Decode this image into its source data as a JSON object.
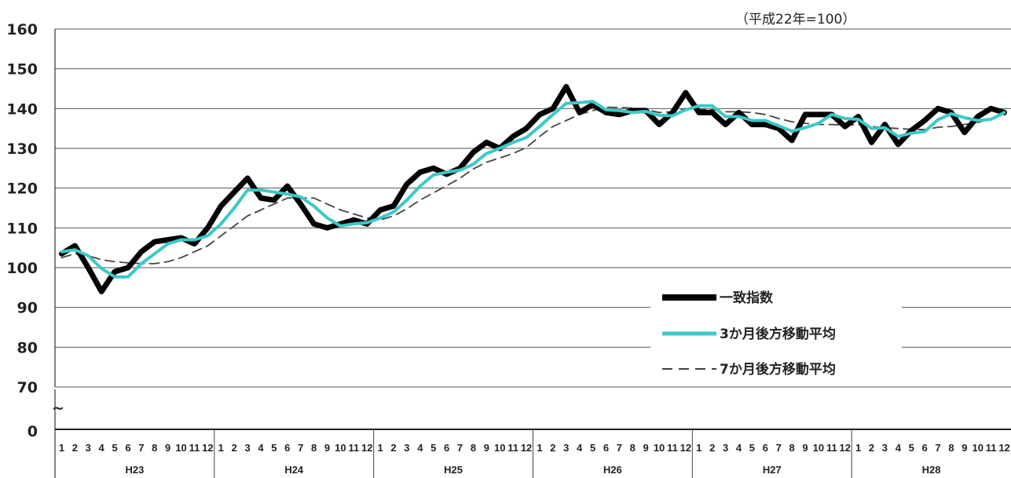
{
  "chart_data": {
    "type": "line",
    "note": "（平成22年=100）",
    "ylim": [
      70,
      160
    ],
    "yticks": [
      "160",
      "150",
      "140",
      "130",
      "120",
      "110",
      "100",
      "90",
      "80",
      "70"
    ],
    "y_break_symbol": "~",
    "y_zero_label": "0",
    "grid": true,
    "legend_position": "right",
    "months": [
      "1",
      "2",
      "3",
      "4",
      "5",
      "6",
      "7",
      "8",
      "9",
      "10",
      "11",
      "12"
    ],
    "years": [
      "H23",
      "H24",
      "H25",
      "H26",
      "H27",
      "H28"
    ],
    "series": [
      {
        "name": "一致指数",
        "color": "#000000",
        "style": "solid-thick",
        "values": [
          103.5,
          105.5,
          100,
          94,
          99,
          100,
          104,
          106.5,
          107,
          107.5,
          106,
          110,
          115.5,
          119,
          122.5,
          117.5,
          117,
          120.5,
          116,
          111,
          110,
          111,
          112,
          111,
          114.5,
          115.5,
          121,
          124,
          125,
          123.5,
          125,
          129,
          131.5,
          130,
          133,
          135,
          138.5,
          140,
          145.5,
          139,
          141,
          139,
          138.5,
          139.5,
          139.5,
          136,
          139,
          144,
          139,
          139,
          136,
          139,
          136,
          136,
          135,
          132,
          138.5,
          138.5,
          138.5,
          135.5,
          138,
          131.5,
          136,
          131,
          134.5,
          137,
          140,
          139,
          134,
          138,
          140,
          139
        ]
      },
      {
        "name": "3か月後方移動平均",
        "color": "#3cc8c8",
        "style": "solid",
        "values": [
          104,
          104.5,
          103,
          99.8,
          97.7,
          97.7,
          101,
          103.5,
          106,
          107,
          107,
          108,
          111,
          115,
          119.5,
          119.5,
          119,
          118.5,
          117.8,
          115.5,
          112.5,
          110.5,
          111,
          111.3,
          112.5,
          114,
          117,
          120.5,
          123.3,
          124,
          124.5,
          126,
          128.7,
          130,
          131.5,
          132.7,
          135.5,
          138.5,
          141.3,
          141.5,
          141.8,
          139.7,
          139.5,
          139,
          139.3,
          138.3,
          138.2,
          139.7,
          140.7,
          140.7,
          138,
          138,
          137,
          137,
          135.7,
          134.3,
          135.2,
          136.3,
          138.5,
          137.5,
          137.3,
          135,
          135.2,
          133,
          133.8,
          134.2,
          137.2,
          138.7,
          137.7,
          137,
          137.3,
          139
        ]
      },
      {
        "name": "7か月後方移動平均",
        "color": "#444444",
        "style": "dashed",
        "values": [
          102.5,
          103.5,
          103,
          102,
          101.5,
          101.2,
          101,
          101,
          101.5,
          102.5,
          104,
          105.5,
          108,
          110.5,
          113,
          114.5,
          116,
          117.5,
          117.5,
          117.5,
          116,
          114.5,
          113.5,
          112.5,
          112,
          113,
          114.8,
          117,
          118.8,
          120.6,
          122.5,
          124.8,
          126.5,
          127.6,
          128.7,
          130.2,
          133,
          135.5,
          137,
          138.5,
          139.5,
          140.3,
          140.3,
          140.1,
          139.8,
          139,
          139.2,
          140,
          139.9,
          139.7,
          139.2,
          139.2,
          139,
          138.5,
          137.5,
          136.7,
          136.3,
          136,
          136,
          135.8,
          136,
          135.5,
          135.2,
          135,
          134.8,
          134.7,
          135.3,
          135.5,
          136,
          136.5,
          137.5,
          138.5
        ]
      }
    ]
  }
}
